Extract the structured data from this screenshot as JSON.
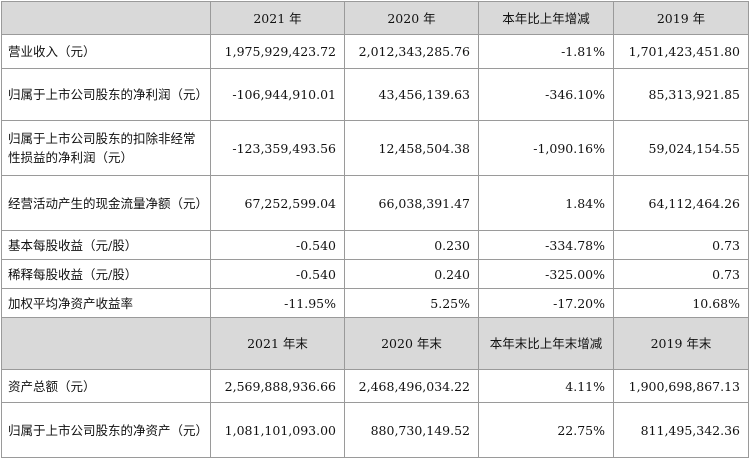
{
  "header1": [
    "2021 年",
    "2020 年",
    "本年比上年增减",
    "2019 年"
  ],
  "rows1": [
    {
      "label": "营业收入（元）",
      "v": [
        "1,975,929,423.72",
        "2,012,343,285.76",
        "-1.81%",
        "1,701,423,451.80"
      ]
    },
    {
      "label": "归属于上市公司股东的净利润（元）",
      "v": [
        "-106,944,910.01",
        "43,456,139.63",
        "-346.10%",
        "85,313,921.85"
      ]
    },
    {
      "label": "归属于上市公司股东的扣除非经常性损益的净利润（元）",
      "v": [
        "-123,359,493.56",
        "12,458,504.38",
        "-1,090.16%",
        "59,024,154.55"
      ]
    },
    {
      "label": "经营活动产生的现金流量净额（元）",
      "v": [
        "67,252,599.04",
        "66,038,391.47",
        "1.84%",
        "64,112,464.26"
      ]
    },
    {
      "label": "基本每股收益（元/股）",
      "v": [
        "-0.540",
        "0.230",
        "-334.78%",
        "0.73"
      ]
    },
    {
      "label": "稀释每股收益（元/股）",
      "v": [
        "-0.540",
        "0.240",
        "-325.00%",
        "0.73"
      ]
    },
    {
      "label": "加权平均净资产收益率",
      "v": [
        "-11.95%",
        "5.25%",
        "-17.20%",
        "10.68%"
      ]
    }
  ],
  "header2": [
    "2021 年末",
    "2020 年末",
    "本年末比上年末增减",
    "2019 年末"
  ],
  "rows2": [
    {
      "label": "资产总额（元）",
      "v": [
        "2,569,888,936.66",
        "2,468,496,034.22",
        "4.11%",
        "1,900,698,867.13"
      ]
    },
    {
      "label": "归属于上市公司股东的净资产（元）",
      "v": [
        "1,081,101,093.00",
        "880,730,149.52",
        "22.75%",
        "811,495,342.36"
      ]
    }
  ]
}
